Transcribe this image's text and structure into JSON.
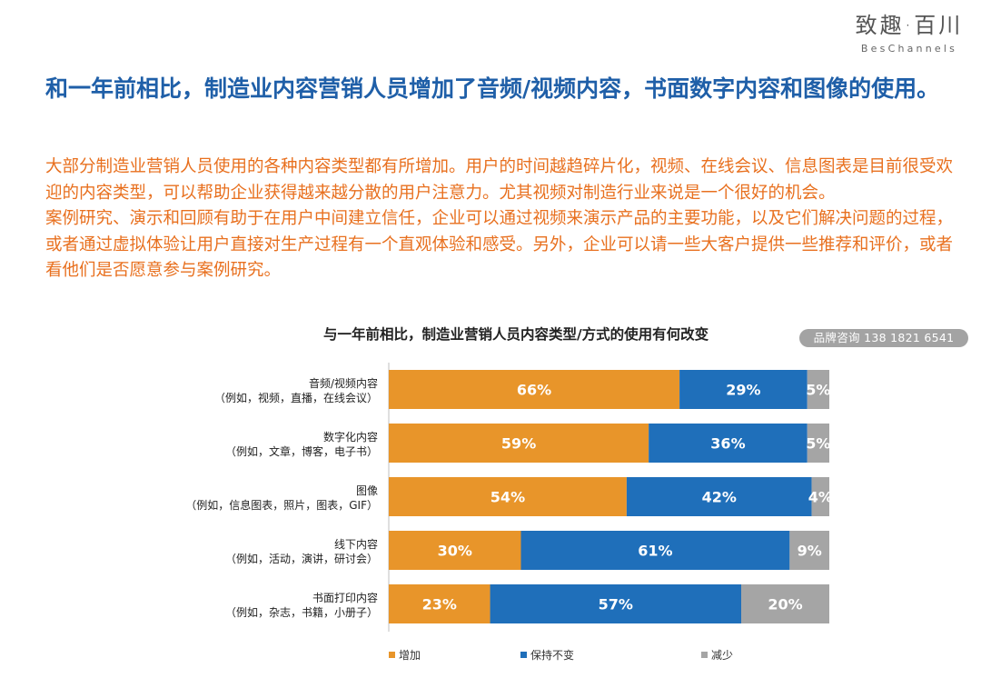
{
  "brand": {
    "cn": "致趣·百川",
    "en": "BesChannels"
  },
  "headline": "和一年前相比，制造业内容营销人员增加了音频/视频内容，书面数字内容和图像的使用。",
  "paragraphs": [
    "大部分制造业营销人员使用的各种内容类型都有所增加。用户的时间越趋碎片化，视频、在线会议、信息图表是目前很受欢迎的内容类型，可以帮助企业获得越来越分散的用户注意力。尤其视频对制造行业来说是一个很好的机会。",
    "案例研究、演示和回顾有助于在用户中间建立信任，企业可以通过视频来演示产品的主要功能，以及它们解决问题的过程，或者通过虚拟体验让用户直接对生产过程有一个直观体验和感受。另外，企业可以请一些大客户提供一些推荐和评价，或者看他们是否愿意参与案例研究。"
  ],
  "contact": "品牌咨询 138 1821 6541",
  "chart_data": {
    "type": "bar",
    "orientation": "horizontal",
    "stacked": true,
    "title": "与一年前相比，制造业营销人员内容类型/方式的使用有何改变",
    "categories": [
      {
        "name": "音频/视频内容",
        "examples": "（例如，视频，直播，在线会议）"
      },
      {
        "name": "数字化内容",
        "examples": "（例如，文章，博客，电子书）"
      },
      {
        "name": "图像",
        "examples": "（例如，信息图表，照片，图表，GIF）"
      },
      {
        "name": "线下内容",
        "examples": "（例如，活动，演讲，研讨会）"
      },
      {
        "name": "书面打印内容",
        "examples": "（例如，杂志，书籍，小册子）"
      }
    ],
    "series": [
      {
        "name": "增加",
        "color": "#e8952a",
        "values": [
          66,
          59,
          54,
          30,
          23
        ]
      },
      {
        "name": "保持不变",
        "color": "#1f6fba",
        "values": [
          29,
          36,
          42,
          61,
          57
        ]
      },
      {
        "name": "减少",
        "color": "#a5a5a5",
        "values": [
          5,
          5,
          4,
          9,
          20
        ]
      }
    ],
    "unit": "%",
    "xlim": [
      0,
      100
    ],
    "legend_position": "bottom"
  }
}
